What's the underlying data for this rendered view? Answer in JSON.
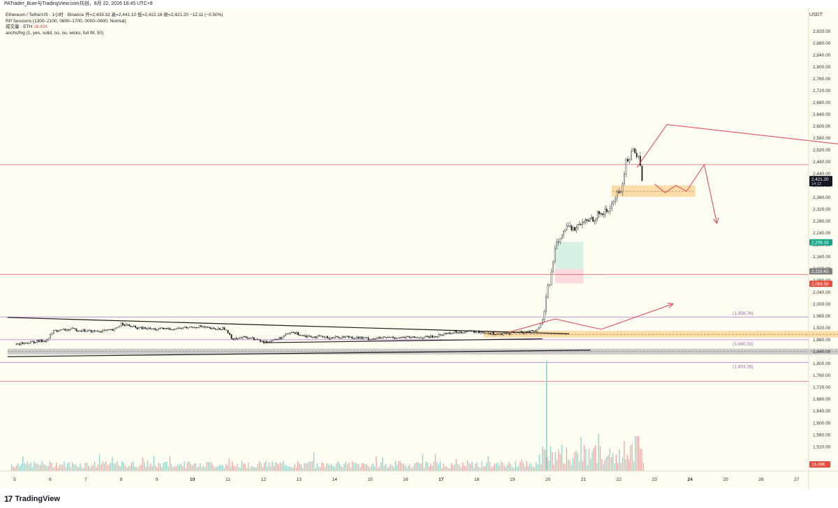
{
  "header": {
    "attribution": "PATrader_Buer与TradingView.com共创，8月 22, 2026 16:45 UTC+8"
  },
  "legend": {
    "symbol_line": "Ethereum / TetherUS · 1小时 · Binance  开=2,433.32  高=2,441.10  低=2,412.16  收=2,421.20  −12.11 (−0.50%)",
    "sessions": "RP Sessions (1300–2100, 0800–1700, 0000–0900, Normal)",
    "volume_label": "成交量 · ETH",
    "volume_value": "16.49K",
    "indicator": "anchs/fvg (1, yes, solid, no, no, wicks, full fill, 50)"
  },
  "axis": {
    "unit": "USDT"
  },
  "footer": {
    "brand": "TradingView"
  },
  "chart_data": {
    "type": "candlestick",
    "y_axis": {
      "min": 1480,
      "max": 2940,
      "ticks": [
        2920,
        2880,
        2840,
        2800,
        2760,
        2720,
        2680,
        2640,
        2600,
        2560,
        2520,
        2480,
        2440,
        2400,
        2360,
        2320,
        2280,
        2240,
        2200,
        2160,
        2120,
        2080,
        2040,
        2000,
        1960,
        1920,
        1880,
        1840,
        1800,
        1760,
        1720,
        1680,
        1640,
        1600,
        1560,
        1520
      ],
      "tick_labels": [
        "2,920.00",
        "2,880.00",
        "2,840.00",
        "2,800.00",
        "2,760.00",
        "2,720.00",
        "2,680.00",
        "2,640.00",
        "2,600.00",
        "2,560.00",
        "2,520.00",
        "2,480.00",
        "2,440.00",
        "2,400.00",
        "2,360.00",
        "2,320.00",
        "2,280.00",
        "2,240.00",
        "2,200.00",
        "2,160.00",
        "2,120.00",
        "2,080.00",
        "2,040.00",
        "2,000.00",
        "1,960.00",
        "1,920.00",
        "1,880.00",
        "1,840.00",
        "1,800.00",
        "1,760.00",
        "1,720.00",
        "1,680.00",
        "1,640.00",
        "1,600.00",
        "1,560.00",
        "1,520.00"
      ]
    },
    "x_axis": {
      "ticks": [
        5,
        6,
        7,
        8,
        9,
        10,
        11,
        12,
        13,
        14,
        15,
        16,
        17,
        18,
        19,
        20,
        21,
        22,
        23,
        24,
        25,
        26,
        27
      ],
      "tick_labels": [
        "5",
        "6",
        "7",
        "8",
        "9",
        "10",
        "11",
        "12",
        "13",
        "14",
        "15",
        "16",
        "17",
        "18",
        "19",
        "20",
        "21",
        "22",
        "23",
        "24",
        "25",
        "26",
        "27"
      ],
      "bold": [
        10,
        17,
        24
      ]
    },
    "price_path": [
      [
        5.0,
        1865
      ],
      [
        5.5,
        1872
      ],
      [
        5.9,
        1878
      ],
      [
        6.1,
        1910
      ],
      [
        6.6,
        1915
      ],
      [
        7.2,
        1908
      ],
      [
        7.8,
        1912
      ],
      [
        8.0,
        1935
      ],
      [
        8.4,
        1920
      ],
      [
        9.0,
        1915
      ],
      [
        9.6,
        1918
      ],
      [
        10.2,
        1925
      ],
      [
        10.6,
        1915
      ],
      [
        10.9,
        1918
      ],
      [
        11.1,
        1885
      ],
      [
        11.6,
        1888
      ],
      [
        12.0,
        1872
      ],
      [
        12.4,
        1882
      ],
      [
        12.8,
        1905
      ],
      [
        13.2,
        1893
      ],
      [
        13.8,
        1887
      ],
      [
        14.4,
        1890
      ],
      [
        15.0,
        1883
      ],
      [
        15.6,
        1888
      ],
      [
        16.2,
        1887
      ],
      [
        16.8,
        1890
      ],
      [
        17.2,
        1903
      ],
      [
        17.7,
        1908
      ],
      [
        18.2,
        1905
      ],
      [
        18.7,
        1898
      ],
      [
        19.0,
        1904
      ],
      [
        19.4,
        1906
      ],
      [
        19.7,
        1912
      ],
      [
        19.85,
        1945
      ],
      [
        20.0,
        2050
      ],
      [
        20.1,
        2100
      ],
      [
        20.2,
        2200
      ],
      [
        20.4,
        2245
      ],
      [
        20.8,
        2258
      ],
      [
        21.1,
        2280
      ],
      [
        21.4,
        2300
      ],
      [
        21.7,
        2315
      ],
      [
        21.9,
        2360
      ],
      [
        22.1,
        2400
      ],
      [
        22.2,
        2480
      ],
      [
        22.4,
        2518
      ],
      [
        22.55,
        2500
      ],
      [
        22.65,
        2421
      ]
    ],
    "volume": {
      "spike_x": 19.95,
      "spike_value": 16.49,
      "unit": "K",
      "last_value": "16.49K"
    },
    "horizontal_levels": [
      {
        "price": 2470,
        "color": "#e06070"
      },
      {
        "price": 2100,
        "color": "#e06070"
      },
      {
        "price": 1956.76,
        "color": "#b070d0",
        "label": "(1,956.76)"
      },
      {
        "price": 1880.03,
        "color": "#b070d0",
        "label": "(1,880.03)"
      },
      {
        "price": 1803.28,
        "color": "#b070d0",
        "label": "(1,803.28)"
      },
      {
        "price": 1740,
        "color": "#e06070"
      }
    ],
    "zones": [
      {
        "x1": 18.2,
        "x2": 29.6,
        "p1": 1910,
        "p2": 1888,
        "color": "#fcd9a0"
      },
      {
        "x1": 4.8,
        "x2": 29.6,
        "p1": 1850,
        "p2": 1830,
        "color": "#c8c8c8"
      },
      {
        "x1": 21.8,
        "x2": 24.15,
        "p1": 2400,
        "p2": 2362,
        "color": "#fcd9a0"
      },
      {
        "x1": 20.2,
        "x2": 21.0,
        "p1": 2210,
        "p2": 2118,
        "color": "#d4efe2"
      },
      {
        "x1": 20.2,
        "x2": 21.0,
        "p1": 2118,
        "p2": 2070,
        "color": "#f9d6d9"
      }
    ],
    "trendlines": [
      {
        "x1": 4.8,
        "p1": 1955,
        "x2": 20.6,
        "p2": 1900,
        "color": "#1a1a1a"
      },
      {
        "x1": 12.0,
        "p1": 1870,
        "x2": 19.85,
        "p2": 1883,
        "color": "#1a1a1a"
      },
      {
        "x1": 4.8,
        "p1": 1823,
        "x2": 21.2,
        "p2": 1845,
        "color": "#1a1a1a"
      }
    ],
    "projections": [
      {
        "points": [
          [
            18.9,
            1905
          ],
          [
            20.2,
            1950
          ],
          [
            21.5,
            1915
          ],
          [
            23.5,
            2000
          ]
        ],
        "color": "#e05060",
        "arrow": true
      },
      {
        "points": [
          [
            22.5,
            2460
          ],
          [
            23.35,
            2605
          ],
          [
            29.6,
            2520
          ]
        ],
        "color": "#e05060",
        "arrow": false
      },
      {
        "points": [
          [
            23.0,
            2405
          ],
          [
            23.3,
            2375
          ],
          [
            23.6,
            2400
          ],
          [
            23.9,
            2380
          ],
          [
            24.4,
            2470
          ],
          [
            24.75,
            2275
          ]
        ],
        "color": "#e05060",
        "arrow": true
      }
    ],
    "price_tags": [
      {
        "price": 2421.2,
        "label": "2,421.20",
        "sub": "14:12",
        "bg": "#131722",
        "fg": "#ffffff"
      },
      {
        "price": 2208.33,
        "label": "2,208.33",
        "bg": "#17a589",
        "fg": "#ffffff"
      },
      {
        "price": 2110.43,
        "label": "2,110.43",
        "bg": "#808080",
        "fg": "#ffffff"
      },
      {
        "price": 2068.58,
        "label": "2,068.58",
        "bg": "#e74c3c",
        "fg": "#ffffff"
      }
    ]
  }
}
